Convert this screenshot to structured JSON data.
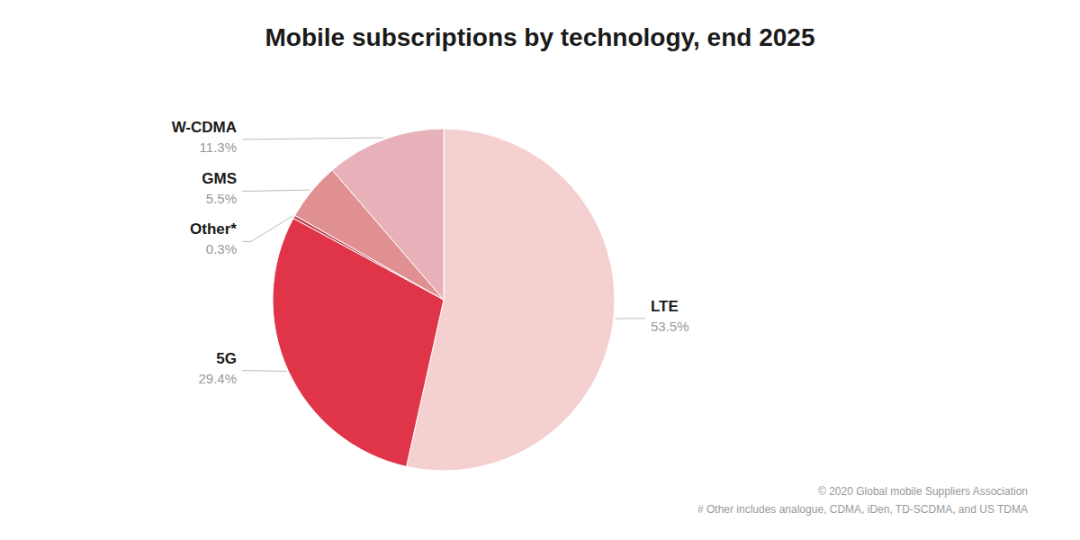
{
  "chart_data": {
    "type": "pie",
    "title": "Mobile subscriptions by technology, end 2025",
    "categories": [
      "LTE",
      "5G",
      "Other*",
      "GMS",
      "W-CDMA"
    ],
    "values": [
      53.5,
      29.4,
      0.3,
      5.5,
      11.3
    ],
    "value_labels": [
      "53.5%",
      "29.4%",
      "0.3%",
      "5.5%",
      "11.3%"
    ],
    "colors": [
      "#f5d0d0",
      "#e03548",
      "#c04050",
      "#e09090",
      "#e8b0b8"
    ],
    "data_labels": true,
    "annotations": [
      "© 2020 Global mobile Suppliers Association",
      "# Other includes analogue, CDMA, iDen, TD-SCDMA, and US TDMA"
    ]
  }
}
